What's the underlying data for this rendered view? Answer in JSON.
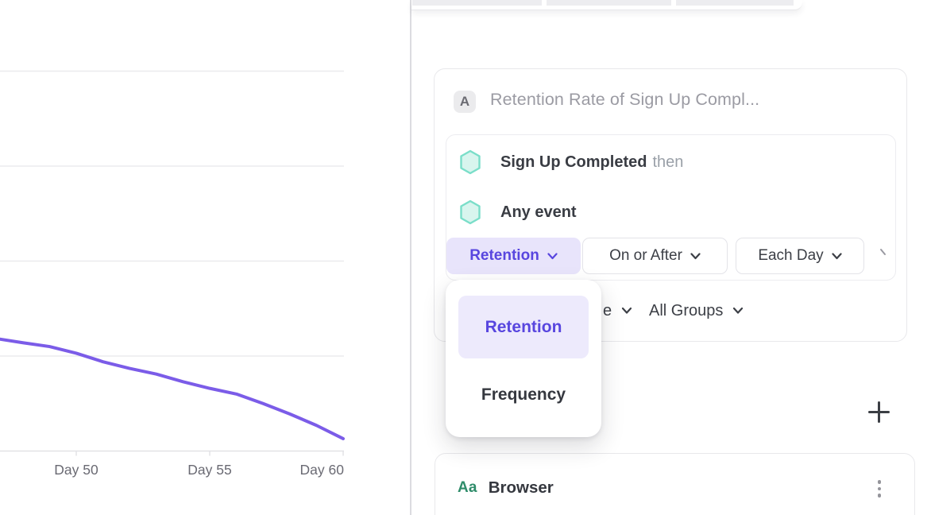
{
  "colors": {
    "accent_purple": "#5846df",
    "accent_lavender": "#e8e4fb",
    "line_purple": "#7b5ce8",
    "hexagon_fill": "#d8f5ee",
    "hexagon_stroke": "#7adec9",
    "property_green": "#2f8c6a"
  },
  "chart_data": {
    "type": "line",
    "title": "",
    "xlabel": "",
    "ylabel": "",
    "x_days": [
      47.1,
      48,
      49,
      50,
      51,
      52,
      53,
      54,
      55,
      56,
      57,
      58,
      59,
      60
    ],
    "values": [
      11.8,
      11.4,
      11.0,
      10.3,
      9.4,
      8.7,
      8.1,
      7.3,
      6.6,
      6.0,
      5.0,
      3.9,
      2.7,
      1.3
    ],
    "x_ticks": [
      {
        "day": 50,
        "label": "Day 50"
      },
      {
        "day": 55,
        "label": "Day 55"
      },
      {
        "day": 60,
        "label": "Day 60"
      }
    ],
    "ylim": [
      0,
      40
    ],
    "grid_step": 10,
    "grid": true,
    "line_color": "#7b5ce8"
  },
  "query_card": {
    "badge": "A",
    "title": "Retention Rate of Sign Up Compl...",
    "events": [
      {
        "name": "Sign Up Completed",
        "suffix": "then"
      },
      {
        "name": "Any event",
        "suffix": ""
      }
    ],
    "controls": [
      {
        "label": "Retention"
      },
      {
        "label": "On or After"
      },
      {
        "label": "Each Day"
      }
    ],
    "group_row": {
      "clipped_label_fragment": "e",
      "groups_label": "All Groups"
    }
  },
  "dropdown_menu": {
    "items": [
      {
        "label": "Retention",
        "selected": true
      },
      {
        "label": "Frequency",
        "selected": false
      }
    ]
  },
  "breakdown_card": {
    "type_badge": "Aa",
    "label": "Browser"
  }
}
